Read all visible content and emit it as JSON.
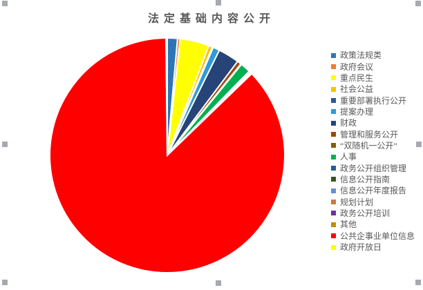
{
  "chart": {
    "title": "法定基础内容公开",
    "title_color": "#595959",
    "legend_text_color": "#595959",
    "background_color": "#FFFFFF",
    "slice_border_color": "#FFFFFF",
    "selection_handle_color": "#A6A9B2",
    "state": "chart-object-selected"
  },
  "chart_data": {
    "type": "pie",
    "title": "法定基础内容公开",
    "legend_position": "right",
    "start_angle_deg": 0,
    "direction": "clockwise",
    "values_are": "percent",
    "series": [
      {
        "label": "政策法规类",
        "value": 1.4,
        "color": "#2E75B6"
      },
      {
        "label": "政府会议",
        "value": 0.36,
        "color": "#ED7D31"
      },
      {
        "label": "重点民生",
        "value": 4.0,
        "color": "#FFFF00"
      },
      {
        "label": "社会公益",
        "value": 0.5,
        "color": "#FFC000"
      },
      {
        "label": "重要部署执行公开",
        "value": 0.14,
        "color": "#2F5597"
      },
      {
        "label": "提案办理",
        "value": 0.92,
        "color": "#2E9BD6"
      },
      {
        "label": "财政",
        "value": 2.9,
        "color": "#264478"
      },
      {
        "label": "管理和服务公开",
        "value": 0.56,
        "color": "#9E480E"
      },
      {
        "label": "“双随机一公开”",
        "value": 0.11,
        "color": "#7F6000"
      },
      {
        "label": "人事",
        "value": 1.39,
        "color": "#00B050"
      },
      {
        "label": "政务公开组织管理",
        "value": 0.08,
        "color": "#255E91"
      },
      {
        "label": "信息公开指南",
        "value": 0.08,
        "color": "#375623"
      },
      {
        "label": "信息公开年度报告",
        "value": 0.08,
        "color": "#698ED0"
      },
      {
        "label": "规划计划",
        "value": 0.08,
        "color": "#CC7A3D"
      },
      {
        "label": "政务公开培训",
        "value": 0.08,
        "color": "#7030A0"
      },
      {
        "label": "其他",
        "value": 0.08,
        "color": "#BF8F00"
      },
      {
        "label": "公共企事业单位信息",
        "value": 87.05,
        "color": "#FF0000"
      },
      {
        "label": "政府开放日",
        "value": 0.17,
        "color": "#FFFF00"
      }
    ]
  }
}
